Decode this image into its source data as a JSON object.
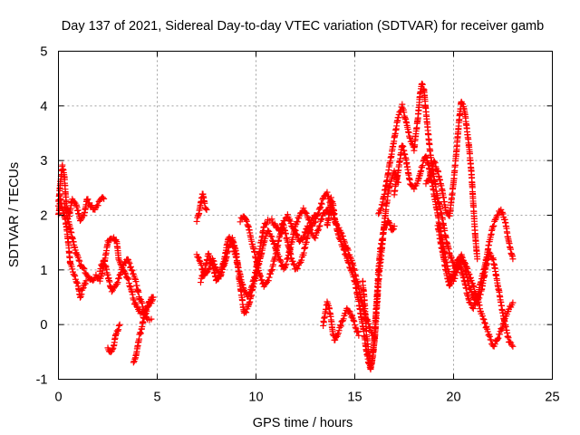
{
  "chart_data": {
    "type": "scatter",
    "title": "Day 137 of 2021, Sidereal Day-to-day VTEC variation (SDTVAR) for receiver gamb",
    "xlabel": "GPS time / hours",
    "ylabel": "SDTVAR / TECUs",
    "xlim": [
      0,
      25
    ],
    "ylim": [
      -1,
      5
    ],
    "xticks": [
      0,
      5,
      10,
      15,
      20,
      25
    ],
    "yticks": [
      -1,
      0,
      1,
      2,
      3,
      4,
      5
    ],
    "grid": true,
    "marker": "+",
    "legend": "none",
    "series": [
      {
        "name": "SDTVAR",
        "color": "#ff0000",
        "tracks": [
          {
            "x": [
              0.0,
              0.1,
              0.2,
              0.3,
              0.4,
              0.55,
              0.7,
              0.9,
              1.1,
              1.3,
              1.45,
              1.6,
              1.8,
              2.0,
              2.2,
              2.3
            ],
            "y": [
              2.2,
              2.6,
              2.9,
              2.7,
              2.2,
              2.0,
              2.3,
              2.2,
              1.9,
              2.0,
              2.3,
              2.2,
              2.1,
              2.2,
              2.3,
              2.3
            ]
          },
          {
            "x": [
              0.0,
              0.1,
              0.2,
              0.3,
              0.4,
              0.5,
              0.6,
              0.8,
              1.0,
              1.1,
              1.2,
              1.4
            ],
            "y": [
              2.0,
              2.3,
              2.1,
              2.0,
              1.8,
              1.5,
              1.1,
              0.9,
              0.7,
              0.5,
              0.6,
              0.8
            ]
          },
          {
            "x": [
              0.3,
              0.5,
              0.7,
              0.9,
              1.1,
              1.3,
              1.5,
              1.7,
              1.9,
              2.1,
              2.3,
              2.5,
              2.65,
              2.8,
              2.95,
              3.05,
              3.15,
              3.25,
              3.4,
              3.55,
              3.7,
              3.85,
              4.0,
              4.15,
              4.3,
              4.45,
              4.6,
              4.75
            ],
            "y": [
              2.2,
              1.9,
              1.6,
              1.3,
              1.1,
              1.0,
              0.9,
              0.8,
              0.9,
              0.8,
              1.1,
              1.5,
              1.6,
              1.6,
              1.5,
              1.2,
              1.1,
              1.0,
              0.9,
              0.8,
              0.6,
              0.4,
              0.3,
              0.2,
              0.2,
              0.3,
              0.4,
              0.5
            ]
          },
          {
            "x": [
              2.1,
              2.3,
              2.5,
              2.7,
              2.9,
              3.1,
              3.3,
              3.5,
              3.7,
              3.9,
              4.1,
              4.3,
              4.5,
              4.7
            ],
            "y": [
              1.0,
              1.2,
              0.9,
              0.6,
              0.7,
              0.9,
              1.1,
              1.2,
              1.0,
              0.8,
              0.5,
              0.3,
              0.1,
              0.1
            ]
          },
          {
            "x": [
              2.5,
              2.6,
              2.7,
              2.8,
              2.9,
              3.0,
              3.1
            ],
            "y": [
              -0.4,
              -0.5,
              -0.5,
              -0.4,
              -0.2,
              -0.1,
              0.0
            ]
          },
          {
            "x": [
              3.8,
              3.9,
              4.0,
              4.1,
              4.2,
              4.3,
              4.4,
              4.5,
              4.6,
              4.7,
              4.8
            ],
            "y": [
              -0.7,
              -0.6,
              -0.4,
              -0.2,
              -0.1,
              0.1,
              0.2,
              0.3,
              0.4,
              0.4,
              0.5
            ]
          },
          {
            "x": [
              7.0,
              7.1,
              7.2,
              7.3,
              7.4,
              7.5
            ],
            "y": [
              1.9,
              2.0,
              2.2,
              2.4,
              2.2,
              2.1
            ]
          },
          {
            "x": [
              7.0,
              7.2,
              7.4,
              7.6,
              7.8,
              8.0,
              8.2,
              8.4,
              8.6,
              8.8,
              9.0,
              9.2,
              9.4,
              9.6,
              9.8,
              10.0,
              10.2,
              10.4,
              10.6,
              10.8,
              11.0,
              11.2,
              11.4,
              11.6,
              11.8,
              12.0,
              12.2,
              12.4,
              12.6,
              12.8,
              13.0,
              13.2,
              13.4,
              13.6,
              13.8,
              14.0,
              14.2,
              14.4,
              14.6,
              14.8,
              15.0,
              15.2,
              15.4,
              15.6,
              15.7,
              15.8,
              15.9,
              16.0,
              16.1,
              16.2,
              16.4,
              16.6,
              16.8,
              17.0,
              17.2
            ],
            "y": [
              1.3,
              1.1,
              0.9,
              1.0,
              1.2,
              1.0,
              0.9,
              1.1,
              1.4,
              1.6,
              1.3,
              0.7,
              0.2,
              0.3,
              0.6,
              0.9,
              1.2,
              1.5,
              1.7,
              1.6,
              1.4,
              1.2,
              1.0,
              1.2,
              1.5,
              1.8,
              2.0,
              2.1,
              2.0,
              1.8,
              1.9,
              2.1,
              2.3,
              2.4,
              2.2,
              1.9,
              1.6,
              1.4,
              1.2,
              1.0,
              0.8,
              0.4,
              0.0,
              -0.5,
              -0.7,
              -0.8,
              -0.6,
              -0.3,
              0.2,
              0.8,
              1.5,
              2.2,
              2.6,
              2.8,
              2.6
            ]
          },
          {
            "x": [
              7.2,
              7.4,
              7.6,
              7.8,
              8.0,
              8.2,
              8.4,
              8.6,
              8.8,
              9.0,
              9.2,
              9.4,
              9.6,
              9.8,
              10.0,
              10.2,
              10.4,
              10.6,
              10.8,
              11.0,
              11.2,
              11.4,
              11.6,
              11.8,
              12.0,
              12.2,
              12.4,
              12.6,
              12.8,
              13.0,
              13.2,
              13.4,
              13.6,
              13.8
            ],
            "y": [
              0.8,
              1.0,
              1.3,
              1.1,
              0.8,
              0.9,
              1.2,
              1.6,
              1.5,
              1.2,
              0.9,
              0.6,
              0.5,
              0.7,
              1.0,
              1.4,
              1.8,
              1.9,
              1.9,
              1.8,
              1.7,
              1.9,
              2.0,
              1.8,
              1.7,
              1.5,
              1.6,
              1.8,
              1.7,
              1.6,
              1.8,
              2.0,
              2.1,
              2.0
            ]
          },
          {
            "x": [
              9.2,
              9.4,
              9.6,
              9.8,
              10.0,
              10.2,
              10.4,
              10.6,
              10.8,
              11.0,
              11.2,
              11.4,
              11.6,
              11.8,
              12.0,
              12.2,
              12.4,
              12.6,
              12.8,
              13.0
            ],
            "y": [
              1.9,
              2.0,
              1.8,
              1.5,
              1.2,
              0.9,
              0.7,
              0.8,
              1.0,
              1.3,
              1.6,
              1.8,
              1.5,
              1.2,
              1.0,
              1.1,
              1.3,
              1.6,
              1.9,
              2.0
            ]
          },
          {
            "x": [
              13.4,
              13.5,
              13.6,
              13.7,
              13.8,
              13.9,
              14.0,
              14.2,
              14.4,
              14.6,
              14.8,
              15.0,
              15.2
            ],
            "y": [
              0.0,
              0.2,
              0.4,
              0.3,
              0.1,
              -0.2,
              -0.3,
              -0.1,
              0.1,
              0.3,
              0.2,
              0.0,
              -0.2
            ]
          },
          {
            "x": [
              13.6,
              13.7,
              13.8,
              13.9,
              14.0,
              14.1,
              14.3,
              14.5,
              14.7,
              14.9,
              15.1,
              15.3,
              15.5,
              15.7,
              15.9
            ],
            "y": [
              1.8,
              2.0,
              2.3,
              2.2,
              1.9,
              1.8,
              1.7,
              1.5,
              1.3,
              1.1,
              0.8,
              0.5,
              0.2,
              0.0,
              -0.2
            ]
          },
          {
            "x": [
              15.4,
              15.5,
              15.6,
              15.7,
              15.8,
              15.9,
              16.0,
              16.1,
              16.2,
              16.3,
              16.4,
              16.5,
              16.6,
              16.7,
              16.8,
              16.9,
              17.0
            ],
            "y": [
              0.8,
              0.4,
              -0.2,
              -0.5,
              -0.8,
              -0.6,
              -0.2,
              0.4,
              1.0,
              1.4,
              1.6,
              1.8,
              1.8,
              1.9,
              1.8,
              1.7,
              1.8
            ]
          },
          {
            "x": [
              16.2,
              16.4,
              16.6,
              16.8,
              17.0,
              17.2,
              17.4,
              17.6,
              17.8,
              18.0,
              18.2,
              18.3,
              18.4,
              18.5,
              18.6,
              18.8,
              19.0,
              19.2,
              19.4,
              19.6,
              19.8,
              20.0,
              20.2,
              20.4,
              20.6,
              20.8,
              21.0,
              21.2,
              21.4,
              21.6,
              21.8,
              22.0,
              22.2,
              22.4,
              22.6,
              22.8,
              23.0
            ],
            "y": [
              2.0,
              2.2,
              2.6,
              3.0,
              3.4,
              3.8,
              4.0,
              3.7,
              3.4,
              3.2,
              3.8,
              4.2,
              4.4,
              4.3,
              3.9,
              3.2,
              2.7,
              2.3,
              2.0,
              1.6,
              1.3,
              1.1,
              1.0,
              1.2,
              1.1,
              0.9,
              0.7,
              0.5,
              0.8,
              1.1,
              1.5,
              1.8,
              2.0,
              2.1,
              1.9,
              1.5,
              1.2
            ]
          },
          {
            "x": [
              17.0,
              17.2,
              17.4,
              17.6,
              17.8,
              18.0,
              18.2,
              18.4,
              18.6,
              18.8,
              19.0,
              19.2,
              19.4,
              19.6,
              19.8,
              20.0,
              20.2,
              20.4,
              20.6,
              20.8,
              21.0,
              21.2,
              21.4,
              21.6,
              21.8,
              22.0,
              22.2,
              22.4,
              22.6,
              22.8,
              23.0
            ],
            "y": [
              2.4,
              2.8,
              3.3,
              3.0,
              2.6,
              2.5,
              2.6,
              2.9,
              3.1,
              2.8,
              2.4,
              2.0,
              1.6,
              1.2,
              0.9,
              0.8,
              1.0,
              1.3,
              1.0,
              0.7,
              0.5,
              0.4,
              0.6,
              1.0,
              1.3,
              1.2,
              0.8,
              0.4,
              0.0,
              -0.3,
              -0.4
            ]
          },
          {
            "x": [
              18.6,
              18.8,
              19.0,
              19.2,
              19.4,
              19.6,
              19.8,
              20.0,
              20.1,
              20.2,
              20.3,
              20.4,
              20.5,
              20.6,
              20.7,
              20.8,
              20.9,
              21.0,
              21.1,
              21.2
            ],
            "y": [
              2.6,
              2.7,
              3.0,
              2.8,
              2.5,
              2.1,
              2.0,
              2.6,
              3.0,
              3.4,
              3.8,
              4.1,
              4.0,
              3.8,
              3.5,
              3.2,
              2.8,
              2.2,
              1.6,
              1.2
            ]
          },
          {
            "x": [
              19.2,
              19.4,
              19.6,
              19.8,
              20.0,
              20.2,
              20.4,
              20.6,
              20.8,
              21.0,
              21.2,
              21.4,
              21.6,
              21.8,
              22.0,
              22.2,
              22.4,
              22.6,
              22.8,
              23.0
            ],
            "y": [
              1.8,
              1.4,
              1.0,
              0.7,
              0.9,
              1.2,
              1.0,
              0.7,
              0.4,
              0.3,
              0.5,
              0.2,
              0.0,
              -0.2,
              -0.4,
              -0.3,
              -0.1,
              0.1,
              0.3,
              0.4
            ]
          }
        ]
      }
    ]
  }
}
